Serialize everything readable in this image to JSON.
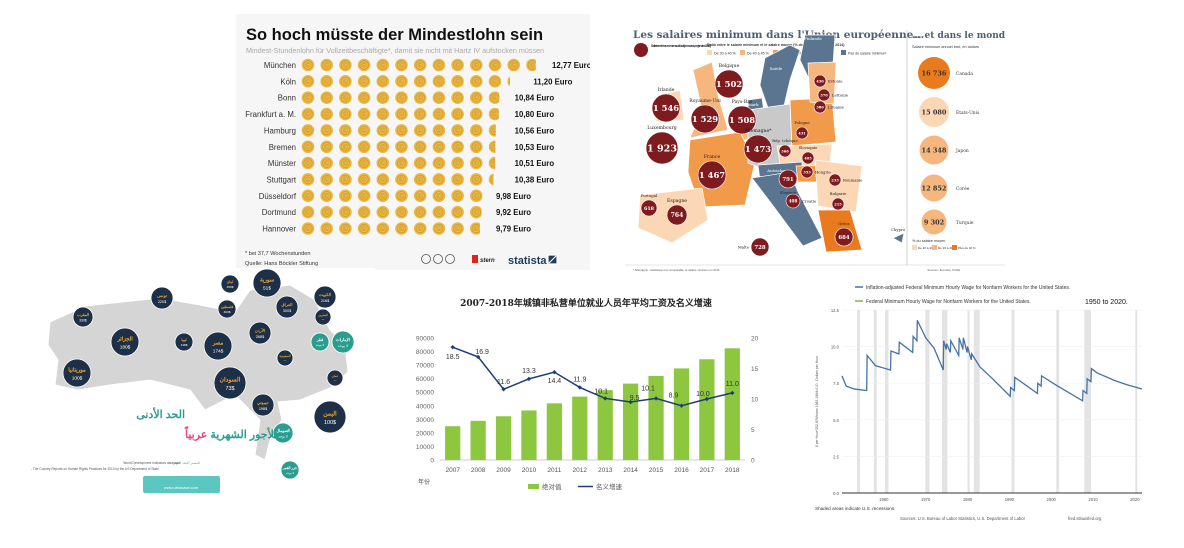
{
  "chart_data": [
    {
      "id": "germany",
      "type": "bar",
      "title": "So hoch müsste der Mindestlohn sein",
      "subtitle": "Mindest-Stundenlohn für Vollzeitbeschäftigte*, damit sie nicht mit Hartz IV aufstocken müssen",
      "categories": [
        "München",
        "Köln",
        "Bonn",
        "Frankfurt a. M.",
        "Hamburg",
        "Bremen",
        "Münster",
        "Stuttgart",
        "Düsseldorf",
        "Dortmund",
        "Hannover"
      ],
      "values": [
        12.77,
        11.2,
        10.84,
        10.8,
        10.56,
        10.53,
        10.51,
        10.38,
        9.98,
        9.92,
        9.79
      ],
      "value_labels": [
        "12,77 Euro",
        "11,20 Euro",
        "10,84 Euro",
        "10,80 Euro",
        "10,56 Euro",
        "10,53 Euro",
        "10,51 Euro",
        "10,38 Euro",
        "9,98 Euro",
        "9,92 Euro",
        "9,79 Euro"
      ],
      "unit": "Euro (1 coin = 1 Euro)",
      "footnote": "* bei 37,7 Wochenstunden",
      "source": "Quelle: Hans Böckler Stiftung",
      "brands": [
        "stern",
        "statista"
      ],
      "coin_color": "#e9b949"
    },
    {
      "id": "eu",
      "type": "map",
      "title": "Les salaires minimum dans l'Union européenne...",
      "legend_circle": "Salaire minimum mensuel brut (en euros, en janvier 2016)",
      "legend_ratio_title": "Ratio entre le salaire minimum et le salaire moyen (% du salaire moyen, en 2014)",
      "legend_ratio": [
        {
          "label": "De 30 à 40 %",
          "color": "#fbd7b5"
        },
        {
          "label": "De 40 à 45 %",
          "color": "#f6b77f"
        },
        {
          "label": "De 45 à 50 %",
          "color": "#f19a4a"
        },
        {
          "label": "Plus de 50 %",
          "color": "#ea7a1e"
        },
        {
          "label": "Pas de salaire minimum",
          "color": "#5b7590"
        }
      ],
      "countries": [
        {
          "name": "Irlande",
          "value": "1 546"
        },
        {
          "name": "Royaume-Uni",
          "value": "1 529"
        },
        {
          "name": "Belgique",
          "value": "1 502"
        },
        {
          "name": "Pays-Bas",
          "value": "1 508"
        },
        {
          "name": "Luxembourg",
          "value": "1 923"
        },
        {
          "name": "Allemagne*",
          "value": "1 473"
        },
        {
          "name": "France",
          "value": "1 467"
        },
        {
          "name": "Portugal",
          "value": "618"
        },
        {
          "name": "Espagne",
          "value": "764"
        },
        {
          "name": "Malte",
          "value": "728"
        },
        {
          "name": "Estonie",
          "value": "430"
        },
        {
          "name": "Lettonie",
          "value": "370"
        },
        {
          "name": "Lituanie",
          "value": "380"
        },
        {
          "name": "Pologne",
          "value": "431"
        },
        {
          "name": "Rép. tchèque",
          "value": "366"
        },
        {
          "name": "Slovaquie",
          "value": "405"
        },
        {
          "name": "Hongrie",
          "value": "353"
        },
        {
          "name": "Slovénie",
          "value": "791"
        },
        {
          "name": "Croatie",
          "value": "408"
        },
        {
          "name": "Roumanie",
          "value": "233"
        },
        {
          "name": "Bulgarie",
          "value": "215"
        },
        {
          "name": "Grèce",
          "value": "684"
        }
      ],
      "no_minimum": [
        "Suède",
        "Finlande",
        "Danemark",
        "Autriche",
        "Italie",
        "Chypre"
      ],
      "world_title": "... et dans le monde",
      "world_subtitle": "Salaire minimum annuel brut, en dollars",
      "world": [
        {
          "name": "Canada",
          "value": "16 736",
          "color": "#ea7a1e"
        },
        {
          "name": "États-Unis",
          "value": "15 080",
          "color": "#fbd7b5"
        },
        {
          "name": "Japon",
          "value": "14 348",
          "color": "#f6b77f"
        },
        {
          "name": "Corée",
          "value": "12 852",
          "color": "#f6b77f"
        },
        {
          "name": "Turquie",
          "value": "9 302",
          "color": "#f6b77f"
        }
      ],
      "world_legend_title": "% du salaire moyen",
      "world_legend": [
        {
          "label": "De 20 à 30 %",
          "color": "#fbd7b5"
        },
        {
          "label": "De 30 à 40 %",
          "color": "#f6b77f"
        },
        {
          "label": "Plus de 40 %",
          "color": "#ea7a1e"
        }
      ],
      "footnote": "* Allemagne : statistique non comparable; le salaire minimum en 2014",
      "source": "Sources : Eurostat, OCDE",
      "circle_color": "#7e1b1f"
    },
    {
      "id": "arab",
      "type": "map",
      "title_line1": "الحد الأدنى",
      "title_line2": "للأجور الشهرية",
      "title_line2_accent": "عربياً",
      "countries": [
        {
          "name": "المغرب",
          "value": "330$"
        },
        {
          "name": "تونس",
          "value": "220$"
        },
        {
          "name": "الجزائر",
          "value": "180$"
        },
        {
          "name": "ليبيا",
          "value": "148$"
        },
        {
          "name": "مصر",
          "value": "174$"
        },
        {
          "name": "موريتانيا",
          "value": "100$"
        },
        {
          "name": "السودان",
          "value": "73$"
        },
        {
          "name": "جيبوتي",
          "value": "198$"
        },
        {
          "name": "لبنان",
          "value": "450$"
        },
        {
          "name": "سورية",
          "value": "51$"
        },
        {
          "name": "فلسطين",
          "value": "400$"
        },
        {
          "name": "العراق",
          "value": "300$"
        },
        {
          "name": "الأردن",
          "value": "268$"
        },
        {
          "name": "الكويت",
          "value": "216$"
        },
        {
          "name": "البحرين",
          "value": "—"
        },
        {
          "name": "السعودية",
          "value": "—"
        },
        {
          "name": "قطر",
          "value": "لا يوجد"
        },
        {
          "name": "الإمارات",
          "value": "لا يوجد"
        },
        {
          "name": "عمان",
          "value": "—"
        },
        {
          "name": "اليمن",
          "value": "100$"
        },
        {
          "name": "الصومال",
          "value": "لا يوجد"
        },
        {
          "name": "جزر القمر",
          "value": "لا يوجد"
        }
      ],
      "source_label": "المصدر: البنك الدولي",
      "source_line1": "World Development Indicators database",
      "source_line2": "- The Country Reports on Human Rights Practices for 2013 by the US Department of State",
      "site": "www.ultrasawt.com",
      "colors": {
        "circle": "#1d3047",
        "none": "#2a9d8f",
        "name": "#f0a52b",
        "title": "#2a9d8f",
        "accent": "#e8457a"
      }
    },
    {
      "id": "china",
      "type": "bar",
      "title": "2007-2018年城镇非私营单位就业人员年平均工资及名义增速",
      "categories": [
        "2007",
        "2008",
        "2009",
        "2010",
        "2011",
        "2012",
        "2013",
        "2014",
        "2015",
        "2016",
        "2017",
        "2018"
      ],
      "series": [
        {
          "name": "绝对值",
          "type": "bar",
          "axis": "left",
          "values": [
            24932,
            28898,
            32244,
            36539,
            41799,
            46769,
            51483,
            56360,
            62029,
            67569,
            74318,
            82413
          ],
          "color": "#8dc63f"
        },
        {
          "name": "名义增速",
          "type": "line",
          "axis": "right",
          "values": [
            18.5,
            16.9,
            11.6,
            13.3,
            14.4,
            11.9,
            10.1,
            9.5,
            10.1,
            8.9,
            10.0,
            11.0
          ],
          "labels": [
            "18.5",
            "16.9",
            "11.6",
            "13.3",
            "14.4",
            "11.9",
            "10.1",
            "9.5",
            "10.1",
            "8.9",
            "10.0",
            "11.0"
          ],
          "color": "#1f3e78"
        }
      ],
      "xlabel": "年份",
      "ylim": [
        0,
        90000
      ],
      "y_ticks": [
        "0",
        "10000",
        "20000",
        "30000",
        "40000",
        "50000",
        "60000",
        "70000",
        "80000",
        "90000"
      ],
      "y2lim": [
        0,
        20
      ],
      "y2_ticks": [
        "0",
        "5",
        "10",
        "15",
        "20"
      ],
      "legend": "bottom"
    },
    {
      "id": "fred",
      "type": "line",
      "series": [
        {
          "name": "Inflation-adjusted Federal Minimum Hourly Wage for Nonfarm Workers for the United States.",
          "color": "#4572a7",
          "points": [
            [
              1950,
              8.0
            ],
            [
              1951,
              7.3
            ],
            [
              1953,
              7.1
            ],
            [
              1955.9,
              7.0
            ],
            [
              1956,
              9.4
            ],
            [
              1958,
              8.7
            ],
            [
              1961.6,
              8.4
            ],
            [
              1961.7,
              9.7
            ],
            [
              1963.6,
              9.5
            ],
            [
              1963.7,
              10.3
            ],
            [
              1966.9,
              9.6
            ],
            [
              1967,
              10.7
            ],
            [
              1967.9,
              10.4
            ],
            [
              1968,
              11.8
            ],
            [
              1970,
              10.6
            ],
            [
              1972,
              9.9
            ],
            [
              1974.2,
              8.4
            ],
            [
              1974.3,
              10.4
            ],
            [
              1974.9,
              9.8
            ],
            [
              1975,
              10.2
            ],
            [
              1975.9,
              9.6
            ],
            [
              1976,
              10.4
            ],
            [
              1977.9,
              9.4
            ],
            [
              1978,
              10.6
            ],
            [
              1978.9,
              9.8
            ],
            [
              1979,
              10.6
            ],
            [
              1979.9,
              9.6
            ],
            [
              1980,
              10.0
            ],
            [
              1980.9,
              9.1
            ],
            [
              1981,
              9.5
            ],
            [
              1983,
              8.6
            ],
            [
              1986,
              7.8
            ],
            [
              1990.2,
              6.6
            ],
            [
              1990.3,
              7.2
            ],
            [
              1991.2,
              7.0
            ],
            [
              1991.3,
              7.9
            ],
            [
              1996.7,
              6.8
            ],
            [
              1996.8,
              7.5
            ],
            [
              1997.6,
              7.3
            ],
            [
              1997.7,
              8.0
            ],
            [
              2001,
              7.4
            ],
            [
              2007.5,
              6.3
            ],
            [
              2007.6,
              7.0
            ],
            [
              2008.5,
              6.8
            ],
            [
              2008.6,
              7.8
            ],
            [
              2009.5,
              7.6
            ],
            [
              2009.6,
              8.5
            ],
            [
              2011,
              8.2
            ],
            [
              2015,
              7.7
            ],
            [
              2018,
              7.4
            ],
            [
              2021.7,
              7.1
            ]
          ]
        },
        {
          "name": "Federal Minimum Hourly Wage for Nonfarm Workers for the United States.",
          "color": "#89b04a",
          "steps": [
            [
              1950,
              0.75
            ],
            [
              1956,
              1.0
            ],
            [
              1961.7,
              1.15
            ],
            [
              1963.7,
              1.25
            ],
            [
              1967,
              1.4
            ],
            [
              1968,
              1.6
            ],
            [
              1974.3,
              2.0
            ],
            [
              1975,
              2.1
            ],
            [
              1976,
              2.3
            ],
            [
              1978,
              2.65
            ],
            [
              1979,
              2.9
            ],
            [
              1980,
              3.1
            ],
            [
              1981,
              3.35
            ],
            [
              1990.3,
              3.8
            ],
            [
              1991.3,
              4.25
            ],
            [
              1996.8,
              4.75
            ],
            [
              1997.7,
              5.15
            ],
            [
              2007.6,
              5.85
            ],
            [
              2008.6,
              6.55
            ],
            [
              2009.6,
              7.25
            ],
            [
              2021.7,
              7.25
            ]
          ]
        }
      ],
      "annotation": "1950 to 2020.",
      "ylabel": "$ per Hour*252.876/Index 1982-1984=100 , Dollars per Hour",
      "xlim": [
        1950,
        2021.7
      ],
      "ylim": [
        0,
        12.5
      ],
      "x_ticks": [
        "1960",
        "1970",
        "1980",
        "1990",
        "2000",
        "2010",
        "2020"
      ],
      "y_ticks": [
        "0.0",
        "2.5",
        "5.0",
        "7.5",
        "10.0",
        "12.5"
      ],
      "recessions": [
        [
          1953.6,
          54.3
        ],
        [
          1957.6,
          1958.3
        ],
        [
          1960.3,
          1961.1
        ],
        [
          1969.9,
          1970.9
        ],
        [
          1973.9,
          1975.2
        ],
        [
          1980,
          1980.5
        ],
        [
          1981.5,
          1982.9
        ],
        [
          1990.5,
          1991.2
        ],
        [
          2001.2,
          2001.9
        ],
        [
          2007.9,
          2009.5
        ],
        [
          2020.1,
          2020.4
        ]
      ],
      "recession_note": "Shaded areas indicate U.S. recessions.",
      "source": "Sources: U.S. Bureau of Labor Statistics, U.S. Department of Labor",
      "site": "fred.stlouisfed.org",
      "grid": true
    }
  ]
}
